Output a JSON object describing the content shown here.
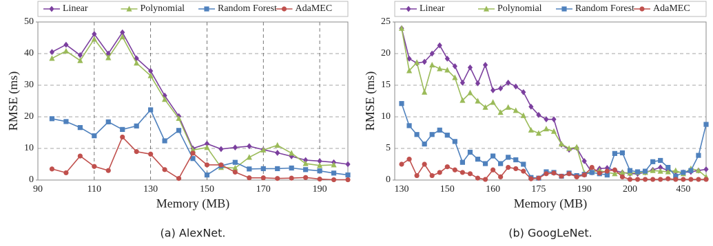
{
  "chart_data": [
    {
      "type": "line",
      "caption": "(a) AlexNet.",
      "xlabel": "Memory (MB)",
      "ylabel": "RMSE (ms)",
      "x": [
        95,
        100,
        105,
        110,
        115,
        120,
        125,
        130,
        135,
        140,
        145,
        150,
        155,
        160,
        165,
        170,
        175,
        180,
        185,
        190,
        195,
        200
      ],
      "xlim": [
        90,
        200
      ],
      "xticks": [
        90,
        110,
        130,
        150,
        170,
        190
      ],
      "ylim": [
        0,
        50
      ],
      "yticks": [
        0,
        10,
        20,
        30,
        40,
        50
      ],
      "grid": "both",
      "series": [
        {
          "name": "Linear",
          "color": "#7b3f9e",
          "marker": "diamond",
          "values": [
            40.5,
            42.8,
            39.5,
            46.2,
            40,
            46.7,
            38.5,
            34.5,
            26.7,
            20.2,
            10,
            11.5,
            9.8,
            10.3,
            10.7,
            9.6,
            8.6,
            7.5,
            6.3,
            6,
            5.6,
            5
          ]
        },
        {
          "name": "Polynomial",
          "color": "#9bbb59",
          "marker": "triangle",
          "values": [
            38.5,
            40.8,
            37.8,
            44.6,
            38.7,
            45.3,
            37,
            33,
            25.5,
            19.5,
            9.5,
            10.3,
            4,
            3.8,
            7.2,
            9.5,
            11,
            8.5,
            5.2,
            4.6,
            4.8,
            null
          ]
        },
        {
          "name": "Random Forest",
          "color": "#4f81bd",
          "marker": "square",
          "values": [
            19.4,
            18.5,
            16.6,
            14,
            18.4,
            16,
            17.1,
            22.2,
            12.4,
            15.7,
            6.8,
            1.6,
            4.5,
            5.6,
            3.5,
            3.6,
            3.6,
            3.8,
            3.3,
            2.9,
            2.2,
            1.6
          ]
        },
        {
          "name": "AdaMEC",
          "color": "#c0504d",
          "marker": "circle",
          "values": [
            3.5,
            2.3,
            7.6,
            4.3,
            3,
            13.6,
            9,
            8.2,
            3.3,
            0.5,
            8.5,
            4.8,
            4.8,
            2.5,
            0.7,
            0.7,
            0.5,
            0.6,
            0.8,
            0.3,
            0.1,
            0.1
          ]
        }
      ]
    },
    {
      "type": "line",
      "caption": "(b) GoogLeNet.",
      "xlabel": "Memory (MB)",
      "ylabel": "RMSE (ms)",
      "categories": [
        "130",
        null,
        null,
        null,
        null,
        null,
        "150",
        null,
        null,
        null,
        null,
        null,
        "160",
        null,
        null,
        null,
        null,
        null,
        "175",
        null,
        null,
        null,
        null,
        null,
        "190",
        null,
        null,
        null,
        null,
        null,
        "200",
        null,
        null,
        null,
        null,
        null,
        null,
        "450",
        null,
        null,
        null
      ],
      "ylim": [
        0,
        25
      ],
      "yticks": [
        0,
        5,
        10,
        15,
        20,
        25
      ],
      "grid": "y",
      "series": [
        {
          "name": "Linear",
          "color": "#7b3f9e",
          "marker": "diamond",
          "values": [
            24,
            19.2,
            18.5,
            18.7,
            20,
            21.3,
            19.2,
            18,
            15.4,
            17.8,
            15.3,
            18.2,
            14.2,
            14.5,
            15.4,
            14.8,
            13.9,
            11.6,
            10.3,
            9.6,
            9.6,
            5.6,
            4.8,
            5.1,
            3,
            1.2,
            1.8,
            1.9,
            1.5,
            1.2,
            1,
            1,
            1.2,
            1.6,
            2,
            1.5,
            1.3,
            1.2,
            1.3,
            1.5,
            1.7
          ]
        },
        {
          "name": "Polynomial",
          "color": "#9bbb59",
          "marker": "triangle",
          "values": [
            24,
            17.3,
            18.6,
            13.9,
            18.2,
            17.6,
            17.4,
            16.2,
            12.6,
            13.8,
            12.5,
            11.5,
            12.3,
            10.7,
            11.5,
            11,
            10.2,
            7.9,
            7.4,
            8.1,
            7.7,
            5.7,
            5,
            5.2,
            1.1,
            1.3,
            1.5,
            1.2,
            1,
            1.2,
            1.1,
            1.2,
            1.2,
            1.5,
            1.4,
            1.3,
            1.5,
            1,
            1.8,
            1.5,
            0.5
          ]
        },
        {
          "name": "Random Forest",
          "color": "#4f81bd",
          "marker": "square",
          "values": [
            12.1,
            8.6,
            7.2,
            5.7,
            7.2,
            7.9,
            7.1,
            6.1,
            2.8,
            4.4,
            3.3,
            2.6,
            3.8,
            2.6,
            3.6,
            3.2,
            2.5,
            0.4,
            0.3,
            1.3,
            1.2,
            0.6,
            1.1,
            0.7,
            0.9,
            1.2,
            1,
            0.8,
            4.2,
            4.3,
            1.5,
            1.3,
            1.4,
            2.9,
            3.1,
            2,
            0.6,
            1.2,
            1.5,
            3.9,
            8.8
          ]
        },
        {
          "name": "AdaMEC",
          "color": "#c0504d",
          "marker": "circle",
          "values": [
            2.5,
            3.3,
            0.7,
            2.5,
            0.7,
            1.2,
            2.1,
            1.6,
            1.2,
            1,
            0.3,
            0.1,
            1.6,
            0.5,
            2,
            1.8,
            1.4,
            0.2,
            0.3,
            1,
            1.1,
            0.6,
            1,
            0.5,
            0.8,
            2,
            1.1,
            1.4,
            1.6,
            0.5,
            0.1,
            0.1,
            0.1,
            0.1,
            0.1,
            0.2,
            0.1,
            0.1,
            0.1,
            0.1,
            0.1
          ]
        }
      ]
    }
  ]
}
